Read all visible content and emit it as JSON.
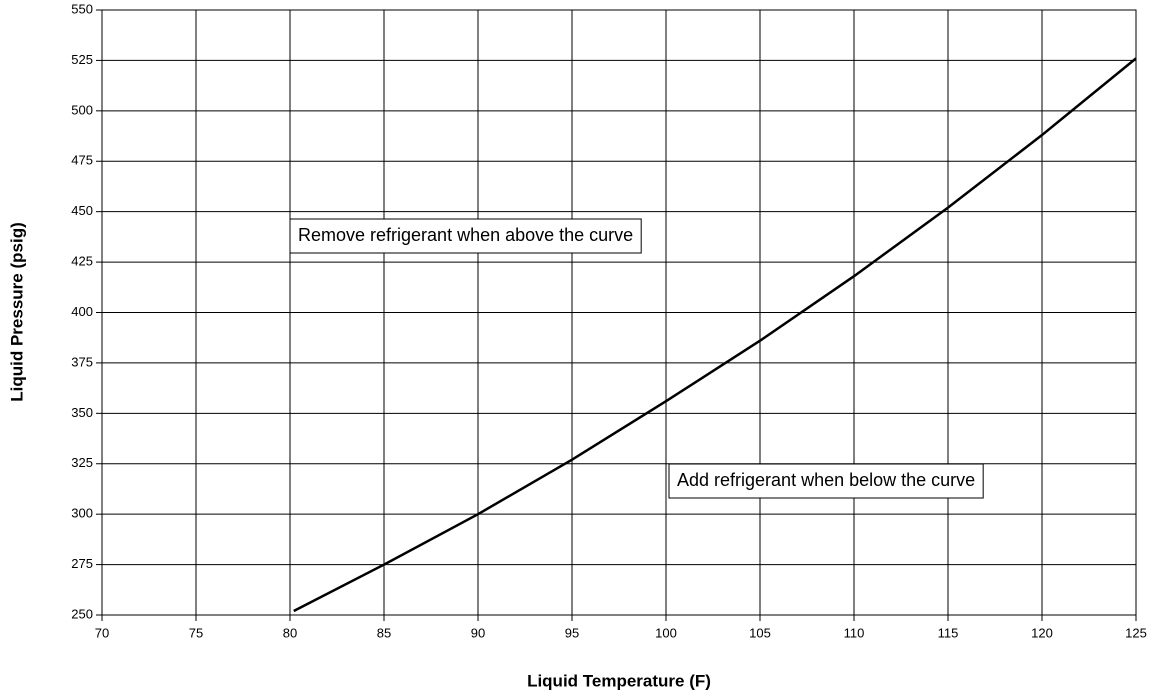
{
  "chart_data": {
    "type": "line",
    "xlabel": "Liquid Temperature (F)",
    "ylabel": "Liquid Pressure (psig)",
    "x": [
      80.2,
      85,
      90,
      95,
      100,
      105,
      110,
      115,
      120,
      125
    ],
    "values": [
      252,
      275,
      300,
      327,
      356,
      386,
      418,
      452,
      488,
      526
    ],
    "color": "#000000",
    "xlim": [
      70,
      125
    ],
    "xticks": [
      70,
      75,
      80,
      85,
      90,
      95,
      100,
      105,
      110,
      115,
      120,
      125
    ],
    "ylim": [
      250,
      550
    ],
    "yticks": [
      250,
      275,
      300,
      325,
      350,
      375,
      400,
      425,
      450,
      475,
      500,
      525,
      550
    ],
    "grid": true,
    "annotations": [
      "Remove refrigerant when above the curve",
      "Add refrigerant when below the curve"
    ]
  }
}
